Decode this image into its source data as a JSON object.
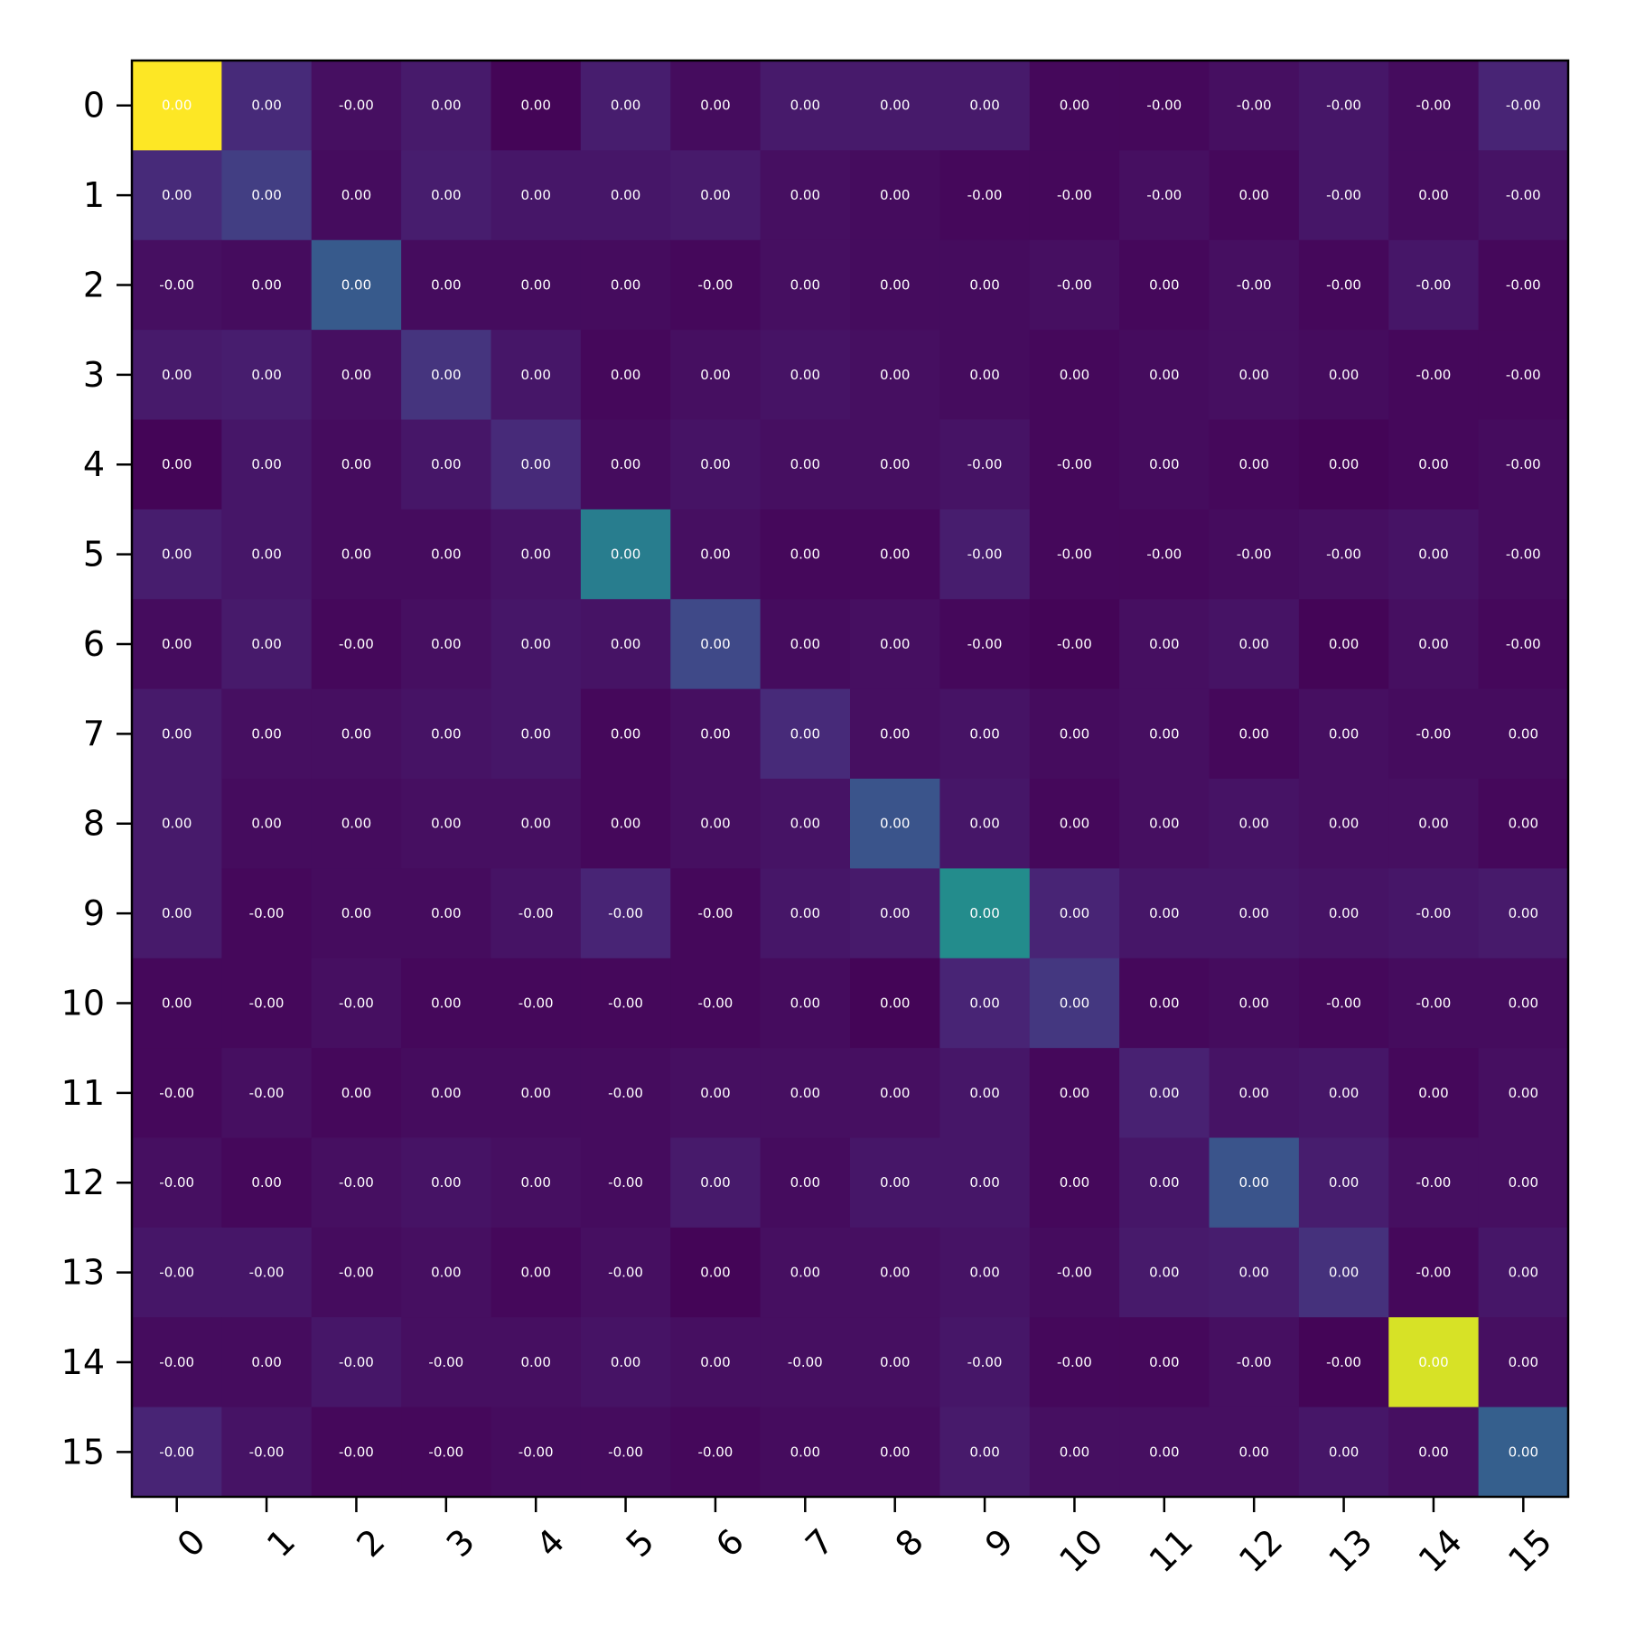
{
  "chart_data": {
    "type": "heatmap",
    "title": "",
    "xlabel": "",
    "ylabel": "",
    "colormap": "viridis",
    "grid": false,
    "x_categories": [
      "0",
      "1",
      "2",
      "3",
      "4",
      "5",
      "6",
      "7",
      "8",
      "9",
      "10",
      "11",
      "12",
      "13",
      "14",
      "15"
    ],
    "y_categories": [
      "0",
      "1",
      "2",
      "3",
      "4",
      "5",
      "6",
      "7",
      "8",
      "9",
      "10",
      "11",
      "12",
      "13",
      "14",
      "15"
    ],
    "intensity": [
      [
        1.0,
        0.12,
        0.04,
        0.07,
        0.01,
        0.08,
        0.03,
        0.07,
        0.07,
        0.07,
        0.02,
        0.02,
        0.04,
        0.06,
        0.03,
        0.1
      ],
      [
        0.12,
        0.18,
        0.03,
        0.08,
        0.06,
        0.06,
        0.07,
        0.04,
        0.03,
        0.02,
        0.02,
        0.04,
        0.02,
        0.06,
        0.03,
        0.05
      ],
      [
        0.04,
        0.03,
        0.28,
        0.03,
        0.03,
        0.03,
        0.02,
        0.04,
        0.03,
        0.03,
        0.04,
        0.02,
        0.04,
        0.02,
        0.06,
        0.02
      ],
      [
        0.07,
        0.08,
        0.04,
        0.15,
        0.06,
        0.02,
        0.04,
        0.05,
        0.04,
        0.03,
        0.02,
        0.03,
        0.04,
        0.03,
        0.02,
        0.02
      ],
      [
        0.01,
        0.06,
        0.03,
        0.06,
        0.12,
        0.03,
        0.05,
        0.04,
        0.04,
        0.05,
        0.02,
        0.03,
        0.02,
        0.01,
        0.02,
        0.03
      ],
      [
        0.08,
        0.06,
        0.03,
        0.03,
        0.05,
        0.42,
        0.04,
        0.02,
        0.02,
        0.08,
        0.02,
        0.02,
        0.03,
        0.04,
        0.05,
        0.03
      ],
      [
        0.03,
        0.07,
        0.02,
        0.04,
        0.06,
        0.05,
        0.22,
        0.03,
        0.04,
        0.02,
        0.01,
        0.04,
        0.05,
        0.01,
        0.04,
        0.02
      ],
      [
        0.07,
        0.04,
        0.04,
        0.05,
        0.06,
        0.02,
        0.04,
        0.12,
        0.04,
        0.05,
        0.03,
        0.04,
        0.02,
        0.04,
        0.03,
        0.03
      ],
      [
        0.07,
        0.03,
        0.03,
        0.04,
        0.04,
        0.02,
        0.04,
        0.05,
        0.26,
        0.06,
        0.02,
        0.04,
        0.05,
        0.04,
        0.04,
        0.02
      ],
      [
        0.07,
        0.02,
        0.03,
        0.03,
        0.05,
        0.1,
        0.02,
        0.06,
        0.07,
        0.48,
        0.1,
        0.06,
        0.06,
        0.05,
        0.06,
        0.07
      ],
      [
        0.02,
        0.02,
        0.04,
        0.02,
        0.02,
        0.02,
        0.02,
        0.03,
        0.01,
        0.1,
        0.16,
        0.02,
        0.03,
        0.02,
        0.03,
        0.03
      ],
      [
        0.02,
        0.04,
        0.02,
        0.03,
        0.03,
        0.03,
        0.04,
        0.04,
        0.04,
        0.06,
        0.02,
        0.09,
        0.05,
        0.06,
        0.02,
        0.04
      ],
      [
        0.04,
        0.02,
        0.04,
        0.05,
        0.04,
        0.03,
        0.07,
        0.03,
        0.06,
        0.06,
        0.02,
        0.06,
        0.26,
        0.08,
        0.04,
        0.04
      ],
      [
        0.06,
        0.06,
        0.03,
        0.04,
        0.02,
        0.04,
        0.01,
        0.04,
        0.04,
        0.05,
        0.03,
        0.07,
        0.08,
        0.14,
        0.02,
        0.06
      ],
      [
        0.03,
        0.03,
        0.06,
        0.04,
        0.04,
        0.05,
        0.04,
        0.04,
        0.04,
        0.06,
        0.02,
        0.02,
        0.04,
        0.01,
        0.94,
        0.04
      ],
      [
        0.1,
        0.05,
        0.02,
        0.02,
        0.03,
        0.03,
        0.02,
        0.03,
        0.03,
        0.07,
        0.04,
        0.04,
        0.04,
        0.06,
        0.04,
        0.3
      ]
    ],
    "labels": [
      [
        "0.00",
        "0.00",
        "-0.00",
        "0.00",
        "0.00",
        "0.00",
        "0.00",
        "0.00",
        "0.00",
        "0.00",
        "0.00",
        "-0.00",
        "-0.00",
        "-0.00",
        "-0.00",
        "-0.00"
      ],
      [
        "0.00",
        "0.00",
        "0.00",
        "0.00",
        "0.00",
        "0.00",
        "0.00",
        "0.00",
        "0.00",
        "-0.00",
        "-0.00",
        "-0.00",
        "0.00",
        "-0.00",
        "0.00",
        "-0.00"
      ],
      [
        "-0.00",
        "0.00",
        "0.00",
        "0.00",
        "0.00",
        "0.00",
        "-0.00",
        "0.00",
        "0.00",
        "0.00",
        "-0.00",
        "0.00",
        "-0.00",
        "-0.00",
        "-0.00",
        "-0.00"
      ],
      [
        "0.00",
        "0.00",
        "0.00",
        "0.00",
        "0.00",
        "0.00",
        "0.00",
        "0.00",
        "0.00",
        "0.00",
        "0.00",
        "0.00",
        "0.00",
        "0.00",
        "-0.00",
        "-0.00"
      ],
      [
        "0.00",
        "0.00",
        "0.00",
        "0.00",
        "0.00",
        "0.00",
        "0.00",
        "0.00",
        "0.00",
        "-0.00",
        "-0.00",
        "0.00",
        "0.00",
        "0.00",
        "0.00",
        "-0.00"
      ],
      [
        "0.00",
        "0.00",
        "0.00",
        "0.00",
        "0.00",
        "0.00",
        "0.00",
        "0.00",
        "0.00",
        "-0.00",
        "-0.00",
        "-0.00",
        "-0.00",
        "-0.00",
        "0.00",
        "-0.00"
      ],
      [
        "0.00",
        "0.00",
        "-0.00",
        "0.00",
        "0.00",
        "0.00",
        "0.00",
        "0.00",
        "0.00",
        "-0.00",
        "-0.00",
        "0.00",
        "0.00",
        "0.00",
        "0.00",
        "-0.00"
      ],
      [
        "0.00",
        "0.00",
        "0.00",
        "0.00",
        "0.00",
        "0.00",
        "0.00",
        "0.00",
        "0.00",
        "0.00",
        "0.00",
        "0.00",
        "0.00",
        "0.00",
        "-0.00",
        "0.00"
      ],
      [
        "0.00",
        "0.00",
        "0.00",
        "0.00",
        "0.00",
        "0.00",
        "0.00",
        "0.00",
        "0.00",
        "0.00",
        "0.00",
        "0.00",
        "0.00",
        "0.00",
        "0.00",
        "0.00"
      ],
      [
        "0.00",
        "-0.00",
        "0.00",
        "0.00",
        "-0.00",
        "-0.00",
        "-0.00",
        "0.00",
        "0.00",
        "0.00",
        "0.00",
        "0.00",
        "0.00",
        "0.00",
        "-0.00",
        "0.00"
      ],
      [
        "0.00",
        "-0.00",
        "-0.00",
        "0.00",
        "-0.00",
        "-0.00",
        "-0.00",
        "0.00",
        "0.00",
        "0.00",
        "0.00",
        "0.00",
        "0.00",
        "-0.00",
        "-0.00",
        "0.00"
      ],
      [
        "-0.00",
        "-0.00",
        "0.00",
        "0.00",
        "0.00",
        "-0.00",
        "0.00",
        "0.00",
        "0.00",
        "0.00",
        "0.00",
        "0.00",
        "0.00",
        "0.00",
        "0.00",
        "0.00"
      ],
      [
        "-0.00",
        "0.00",
        "-0.00",
        "0.00",
        "0.00",
        "-0.00",
        "0.00",
        "0.00",
        "0.00",
        "0.00",
        "0.00",
        "0.00",
        "0.00",
        "0.00",
        "-0.00",
        "0.00"
      ],
      [
        "-0.00",
        "-0.00",
        "-0.00",
        "0.00",
        "0.00",
        "-0.00",
        "0.00",
        "0.00",
        "0.00",
        "0.00",
        "-0.00",
        "0.00",
        "0.00",
        "0.00",
        "-0.00",
        "0.00"
      ],
      [
        "-0.00",
        "0.00",
        "-0.00",
        "-0.00",
        "0.00",
        "0.00",
        "0.00",
        "-0.00",
        "0.00",
        "-0.00",
        "-0.00",
        "0.00",
        "-0.00",
        "-0.00",
        "0.00",
        "0.00"
      ],
      [
        "-0.00",
        "-0.00",
        "-0.00",
        "-0.00",
        "-0.00",
        "-0.00",
        "-0.00",
        "0.00",
        "0.00",
        "0.00",
        "0.00",
        "0.00",
        "0.00",
        "0.00",
        "0.00",
        "0.00"
      ]
    ]
  }
}
